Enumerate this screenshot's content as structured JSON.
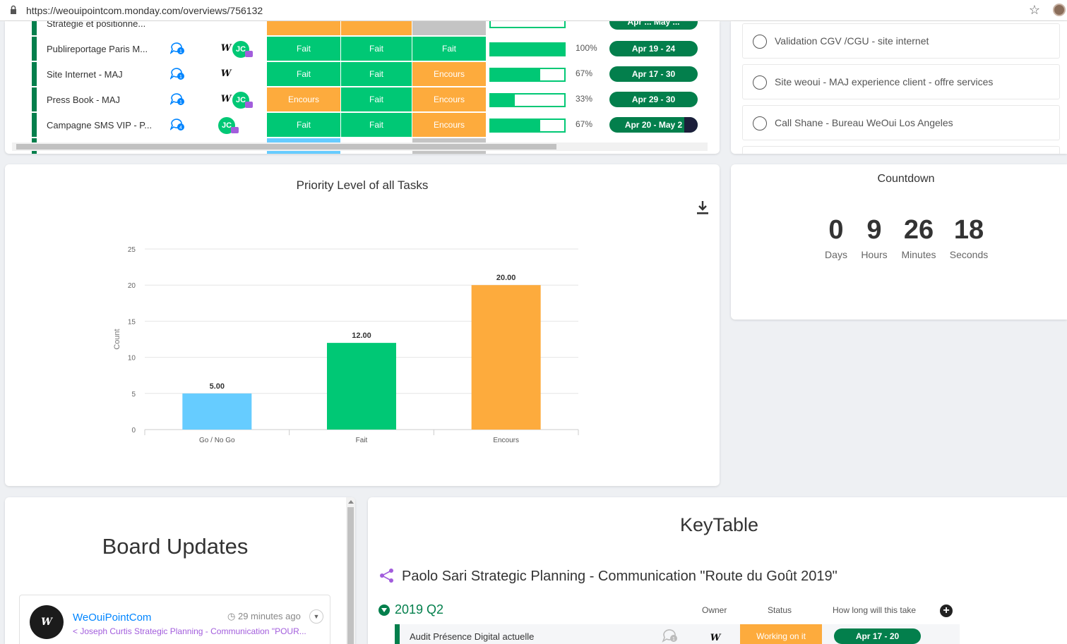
{
  "browser": {
    "url": "https://weouipointcom.monday.com/overviews/756132"
  },
  "board_table": {
    "partial_top_row": {
      "name": "Stratégie et positionne...",
      "tl": "Apr ... May ..."
    },
    "rows": [
      {
        "name": "Publireportage Paris M...",
        "updates": "1",
        "owners": [
          "logo",
          "JC"
        ],
        "s1": "Fait",
        "s2": "Fait",
        "s3": "Fait",
        "progress": 100,
        "pct": "100%",
        "timeline": "Apr 19 - 24",
        "overdue_frac": 0
      },
      {
        "name": "Site Internet - MAJ",
        "updates": "1",
        "owners": [
          "logo"
        ],
        "s1": "Fait",
        "s2": "Fait",
        "s3": "Encours",
        "progress": 67,
        "pct": "67%",
        "timeline": "Apr 17 - 30",
        "overdue_frac": 0
      },
      {
        "name": "Press Book - MAJ",
        "updates": "1",
        "owners": [
          "logo",
          "JC"
        ],
        "s1": "Encours",
        "s2": "Fait",
        "s3": "Encours",
        "progress": 33,
        "pct": "33%",
        "timeline": "Apr 29 - 30",
        "overdue_frac": 0
      },
      {
        "name": "Campagne SMS VIP - P...",
        "updates": "4",
        "owners": [
          "JC"
        ],
        "s1": "Fait",
        "s2": "Fait",
        "s3": "Encours",
        "progress": 67,
        "pct": "67%",
        "timeline": "Apr 20 - May 2",
        "overdue_frac": 0.15
      }
    ],
    "status_colors": {
      "Fait": "#00c875",
      "Encours": "#fdab3d",
      "Go / No Go": "#66ccff"
    }
  },
  "checklist": {
    "items": [
      {
        "label": "Validation CGV /CGU - site internet"
      },
      {
        "label": "Site weoui - MAJ experience client - offre services"
      },
      {
        "label": "Call Shane - Bureau WeOui Los Angeles"
      }
    ]
  },
  "chart_widget": {
    "title": "Priority Level of all Tasks",
    "download_icon": "download-icon"
  },
  "chart_data": {
    "type": "bar",
    "categories": [
      "Go / No Go",
      "Fait",
      "Encours"
    ],
    "values": [
      5,
      12,
      20
    ],
    "value_labels": [
      "5.00",
      "12.00",
      "20.00"
    ],
    "colors": [
      "#66ccff",
      "#00c875",
      "#fdab3d"
    ],
    "title": "Priority Level of all Tasks",
    "xlabel": "",
    "ylabel": "Count",
    "ylim": [
      0,
      25
    ],
    "yticks": [
      0,
      5,
      10,
      15,
      20,
      25
    ],
    "grid": true
  },
  "countdown": {
    "title": "Countdown",
    "days": "0",
    "days_label": "Days",
    "hours": "9",
    "hours_label": "Hours",
    "minutes": "26",
    "minutes_label": "Minutes",
    "seconds": "18",
    "seconds_label": "Seconds"
  },
  "updates": {
    "title": "Board Updates",
    "author": "WeOuiPointCom",
    "time": "29 minutes ago",
    "board": "Joseph Curtis Strategic Planning - Communication \"POUR..."
  },
  "keytable": {
    "title": "KeyTable",
    "board": "Paolo Sari Strategic Planning - Communication \"Route du Goût 2019\"",
    "group": "2019 Q2",
    "columns": {
      "owner": "Owner",
      "status": "Status",
      "timeline": "How long will this take"
    },
    "row": {
      "name": "Audit Présence Digital actuelle",
      "updates": "1",
      "status": "Working on it",
      "timeline": "Apr 17 - 20"
    }
  }
}
